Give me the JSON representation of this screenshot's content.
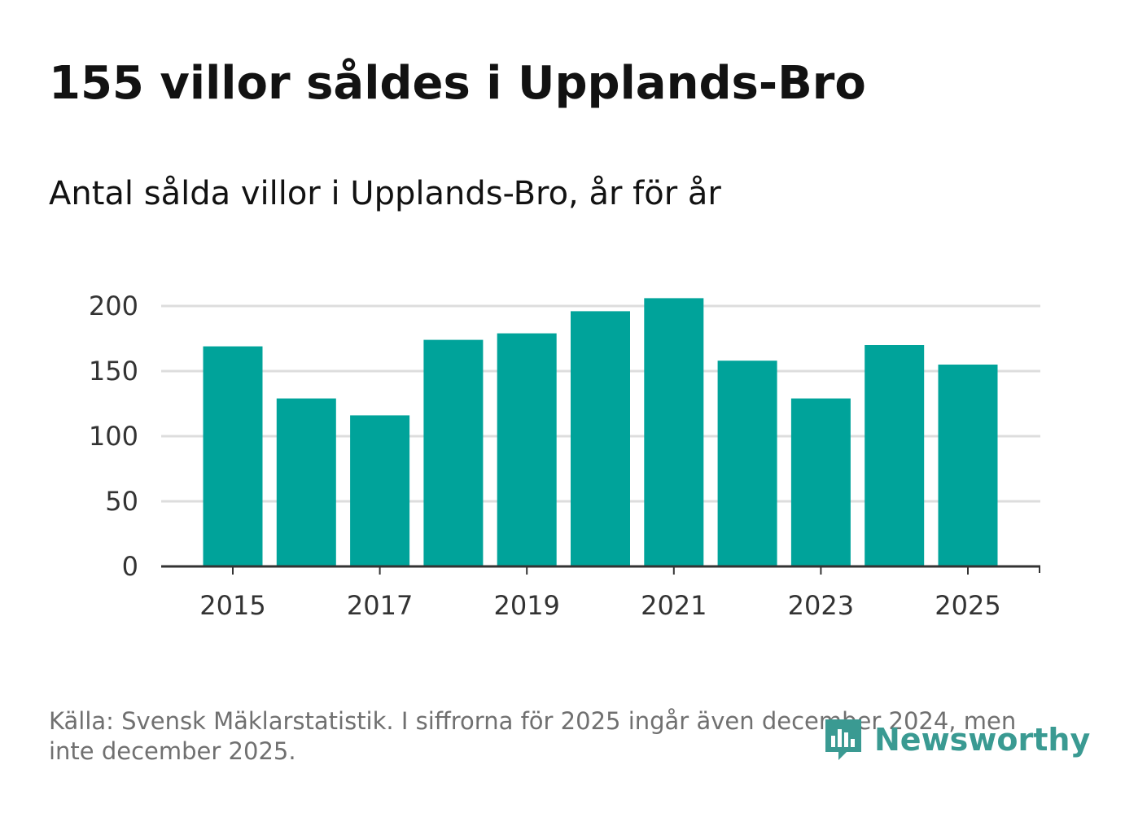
{
  "title": "155 villor såldes i Upplands-Bro",
  "subtitle": "Antal sålda villor i Upplands-Bro, år för år",
  "source": "Källa: Svensk Mäklarstatistik. I siffrorna för 2025 ingår även december 2024, men inte december 2025.",
  "logo": {
    "text": "Newsworthy",
    "color": "#3a9a92"
  },
  "colors": {
    "bar": "#00a39a",
    "grid": "#dddddd",
    "axis": "#333333"
  },
  "chart_data": {
    "type": "bar",
    "title": "Antal sålda villor i Upplands-Bro, år för år",
    "xlabel": "",
    "ylabel": "",
    "categories": [
      "2015",
      "2016",
      "2017",
      "2018",
      "2019",
      "2020",
      "2021",
      "2022",
      "2023",
      "2024",
      "2025"
    ],
    "values": [
      169,
      129,
      116,
      174,
      179,
      196,
      206,
      158,
      129,
      170,
      155
    ],
    "ylim": [
      0,
      200
    ],
    "yticks": [
      0,
      50,
      100,
      150,
      200
    ],
    "xticks": [
      "2015",
      "2017",
      "2019",
      "2021",
      "2023",
      "2025"
    ],
    "grid": true
  }
}
